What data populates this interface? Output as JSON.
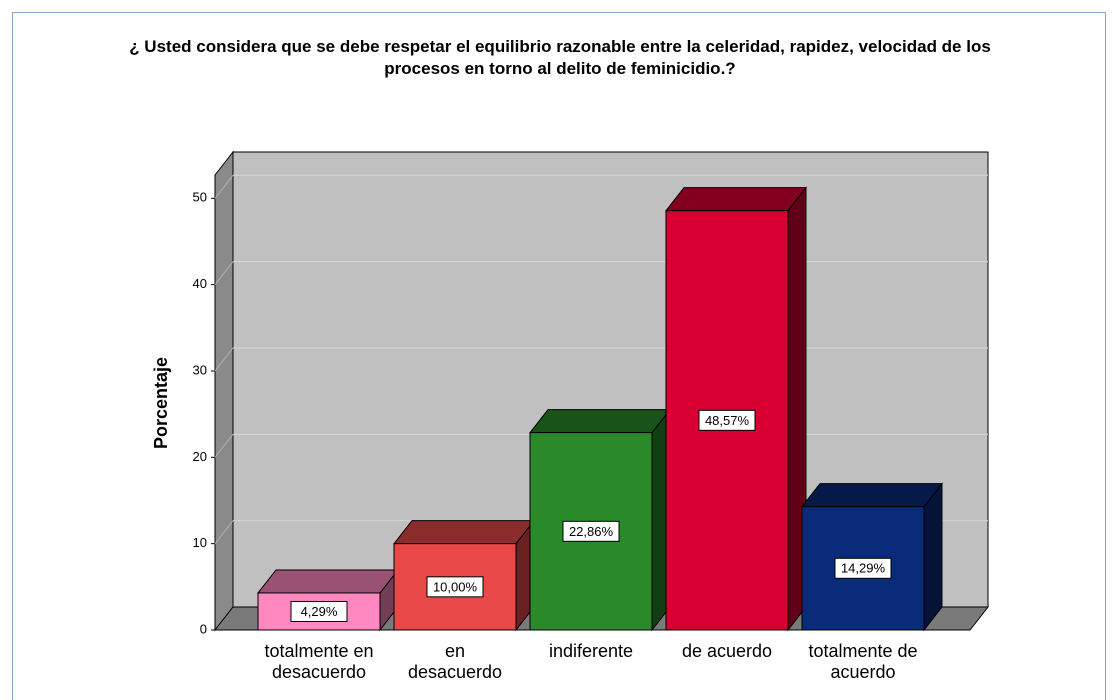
{
  "chart_data": {
    "type": "bar3d",
    "title": "¿ Usted considera que se debe respetar el equilibrio razonable entre la celeridad, rapidez, velocidad de los\nprocesos en torno al delito de feminicidio.?",
    "y_label": "Porcentaje",
    "categories": [
      "totalmente en\ndesacuerdo",
      "en\ndesacuerdo",
      "indiferente",
      "de acuerdo",
      "totalmente de\nacuerdo"
    ],
    "values": [
      4.29,
      10.0,
      22.86,
      48.57,
      14.29
    ],
    "value_labels": [
      "4,29%",
      "10,00%",
      "22,86%",
      "48,57%",
      "14,29%"
    ],
    "colors": [
      "#ff88c0",
      "#e84848",
      "#2a8a2a",
      "#d80032",
      "#0a2a7a"
    ],
    "ylim": [
      0,
      52.7
    ],
    "yticks": [
      0,
      10,
      20,
      30,
      40,
      50
    ],
    "grid": true
  }
}
